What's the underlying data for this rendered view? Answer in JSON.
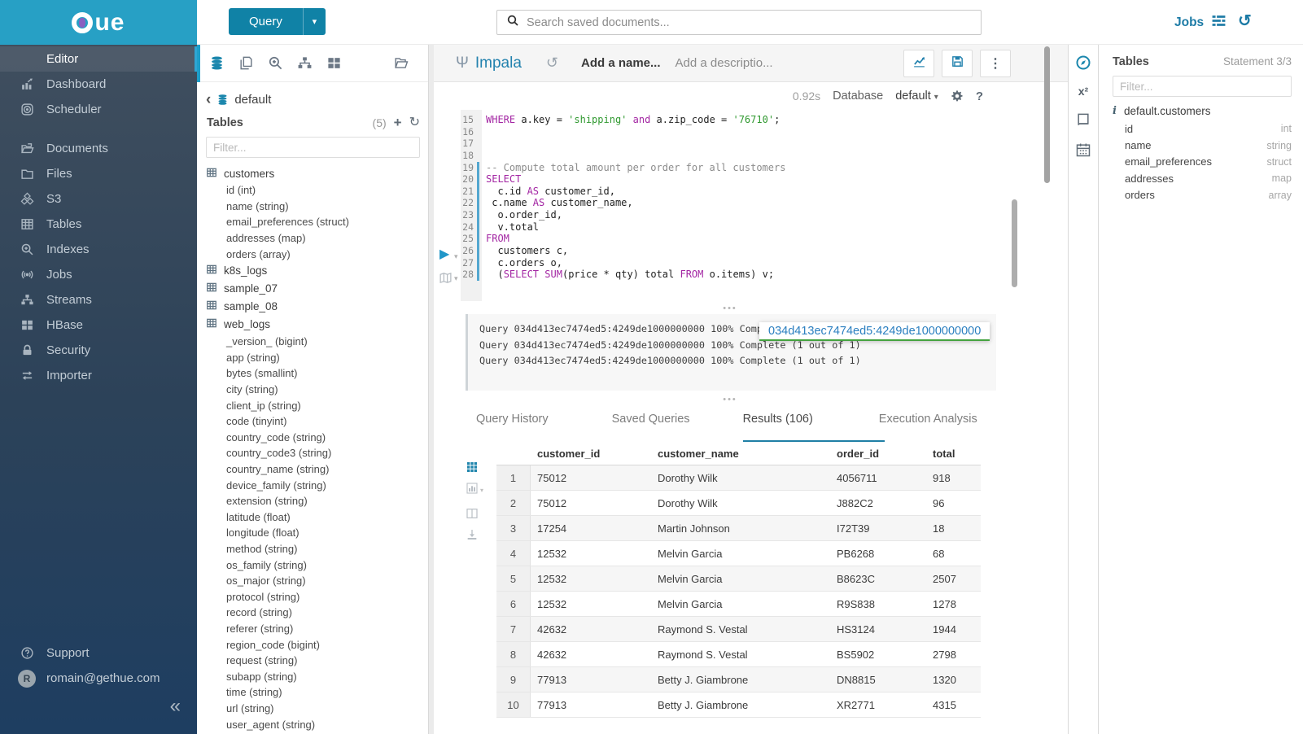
{
  "topbar": {
    "query_label": "Query",
    "search_placeholder": "Search saved documents...",
    "jobs_label": "Jobs"
  },
  "left_nav": {
    "groups": [
      [
        {
          "label": "Editor",
          "icon": "code",
          "active": true
        },
        {
          "label": "Dashboard",
          "icon": "dashboard",
          "active": false
        },
        {
          "label": "Scheduler",
          "icon": "scheduler",
          "active": false
        }
      ],
      [
        {
          "label": "Documents",
          "icon": "documents",
          "active": false
        },
        {
          "label": "Files",
          "icon": "files",
          "active": false
        },
        {
          "label": "S3",
          "icon": "s3",
          "active": false
        },
        {
          "label": "Tables",
          "icon": "tables",
          "active": false
        },
        {
          "label": "Indexes",
          "icon": "indexes",
          "active": false
        },
        {
          "label": "Jobs",
          "icon": "jobs",
          "active": false
        },
        {
          "label": "Streams",
          "icon": "streams",
          "active": false
        },
        {
          "label": "HBase",
          "icon": "hbase",
          "active": false
        },
        {
          "label": "Security",
          "icon": "security",
          "active": false
        },
        {
          "label": "Importer",
          "icon": "importer",
          "active": false
        }
      ]
    ],
    "support_label": "Support",
    "user_email": "romain@gethue.com",
    "user_initial": "R"
  },
  "browser": {
    "breadcrumb": "default",
    "title": "Tables",
    "count": "(5)",
    "filter_placeholder": "Filter...",
    "tree": [
      {
        "name": "customers",
        "columns": [
          "id (int)",
          "name (string)",
          "email_preferences (struct)",
          "addresses (map)",
          "orders (array)"
        ]
      },
      {
        "name": "k8s_logs",
        "columns": []
      },
      {
        "name": "sample_07",
        "columns": []
      },
      {
        "name": "sample_08",
        "columns": []
      },
      {
        "name": "web_logs",
        "columns": [
          "_version_ (bigint)",
          "app (string)",
          "bytes (smallint)",
          "city (string)",
          "client_ip (string)",
          "code (tinyint)",
          "country_code (string)",
          "country_code3 (string)",
          "country_name (string)",
          "device_family (string)",
          "extension (string)",
          "latitude (float)",
          "longitude (float)",
          "method (string)",
          "os_family (string)",
          "os_major (string)",
          "protocol (string)",
          "record (string)",
          "referer (string)",
          "region_code (bigint)",
          "request (string)",
          "subapp (string)",
          "time (string)",
          "url (string)",
          "user_agent (string)"
        ]
      }
    ]
  },
  "editor": {
    "engine": "Impala",
    "name_placeholder": "Add a name...",
    "description_placeholder": "Add a descriptio...",
    "exec_time": "0.92s",
    "database_label": "Database",
    "database_value": "default",
    "active_line_start": 19,
    "active_line_end": 28,
    "lines": [
      {
        "n": 15,
        "t": [
          [
            "kw",
            "WHERE"
          ],
          [
            "pl",
            " a.key = "
          ],
          [
            "str",
            "'shipping'"
          ],
          [
            "pl",
            " "
          ],
          [
            "kw",
            "and"
          ],
          [
            "pl",
            " a.zip_code = "
          ],
          [
            "str",
            "'76710'"
          ],
          [
            "pl",
            ";"
          ]
        ]
      },
      {
        "n": 16,
        "t": []
      },
      {
        "n": 17,
        "t": []
      },
      {
        "n": 18,
        "t": []
      },
      {
        "n": 19,
        "t": [
          [
            "cm",
            "-- Compute total amount per order for all customers"
          ]
        ]
      },
      {
        "n": 20,
        "t": [
          [
            "kw",
            "SELECT"
          ]
        ]
      },
      {
        "n": 21,
        "t": [
          [
            "pl",
            "  c.id "
          ],
          [
            "kw",
            "AS"
          ],
          [
            "pl",
            " customer_id,"
          ]
        ]
      },
      {
        "n": 22,
        "t": [
          [
            "pl",
            " c.name "
          ],
          [
            "kw",
            "AS"
          ],
          [
            "pl",
            " customer_name,"
          ]
        ]
      },
      {
        "n": 23,
        "t": [
          [
            "pl",
            "  o.order_id,"
          ]
        ]
      },
      {
        "n": 24,
        "t": [
          [
            "pl",
            "  v.total"
          ]
        ]
      },
      {
        "n": 25,
        "t": [
          [
            "kw",
            "FROM"
          ]
        ]
      },
      {
        "n": 26,
        "t": [
          [
            "pl",
            "  customers c,"
          ]
        ]
      },
      {
        "n": 27,
        "t": [
          [
            "pl",
            "  c.orders o,"
          ]
        ]
      },
      {
        "n": 28,
        "t": [
          [
            "pl",
            "  ("
          ],
          [
            "kw",
            "SELECT"
          ],
          [
            "pl",
            " "
          ],
          [
            "kw",
            "SUM"
          ],
          [
            "pl",
            "(price * qty) total "
          ],
          [
            "kw",
            "FROM"
          ],
          [
            "pl",
            " o.items) v;"
          ]
        ]
      }
    ]
  },
  "log": {
    "lines": [
      "Query 034d413ec7474ed5:4249de1000000000 100% Complete (1 out of 1)",
      "Query 034d413ec7474ed5:4249de1000000000 100% Complete (1 out of 1)",
      "Query 034d413ec7474ed5:4249de1000000000 100% Complete (1 out of 1)"
    ],
    "tooltip": "034d413ec7474ed5:4249de1000000000"
  },
  "tabs": [
    {
      "label": "Query History",
      "active": false
    },
    {
      "label": "Saved Queries",
      "active": false
    },
    {
      "label": "Results (106)",
      "active": true
    },
    {
      "label": "Execution Analysis",
      "active": false
    }
  ],
  "results": {
    "columns": [
      "customer_id",
      "customer_name",
      "order_id",
      "total"
    ],
    "rows": [
      [
        "1",
        "75012",
        "Dorothy Wilk",
        "4056711",
        "918"
      ],
      [
        "2",
        "75012",
        "Dorothy Wilk",
        "J882C2",
        "96"
      ],
      [
        "3",
        "17254",
        "Martin Johnson",
        "I72T39",
        "18"
      ],
      [
        "4",
        "12532",
        "Melvin Garcia",
        "PB6268",
        "68"
      ],
      [
        "5",
        "12532",
        "Melvin Garcia",
        "B8623C",
        "2507"
      ],
      [
        "6",
        "12532",
        "Melvin Garcia",
        "R9S838",
        "1278"
      ],
      [
        "7",
        "42632",
        "Raymond S. Vestal",
        "HS3124",
        "1944"
      ],
      [
        "8",
        "42632",
        "Raymond S. Vestal",
        "BS5902",
        "2798"
      ],
      [
        "9",
        "77913",
        "Betty J. Giambrone",
        "DN8815",
        "1320"
      ],
      [
        "10",
        "77913",
        "Betty J. Giambrone",
        "XR2771",
        "4315"
      ]
    ]
  },
  "assist": {
    "title": "Tables",
    "statement": "Statement 3/3",
    "filter_placeholder": "Filter...",
    "table": "default.customers",
    "columns": [
      {
        "name": "id",
        "type": "int"
      },
      {
        "name": "name",
        "type": "string"
      },
      {
        "name": "email_preferences",
        "type": "struct"
      },
      {
        "name": "addresses",
        "type": "map"
      },
      {
        "name": "orders",
        "type": "array"
      }
    ]
  },
  "colors": {
    "accent_blue": "#1082a6",
    "link_blue": "#1d7ba6",
    "active_cyan": "#2fa6d4",
    "keyword_purple": "#a326a3",
    "string_green": "#309930",
    "tab_underline": "#1f7fa5",
    "tooltip_green": "#44a340"
  }
}
